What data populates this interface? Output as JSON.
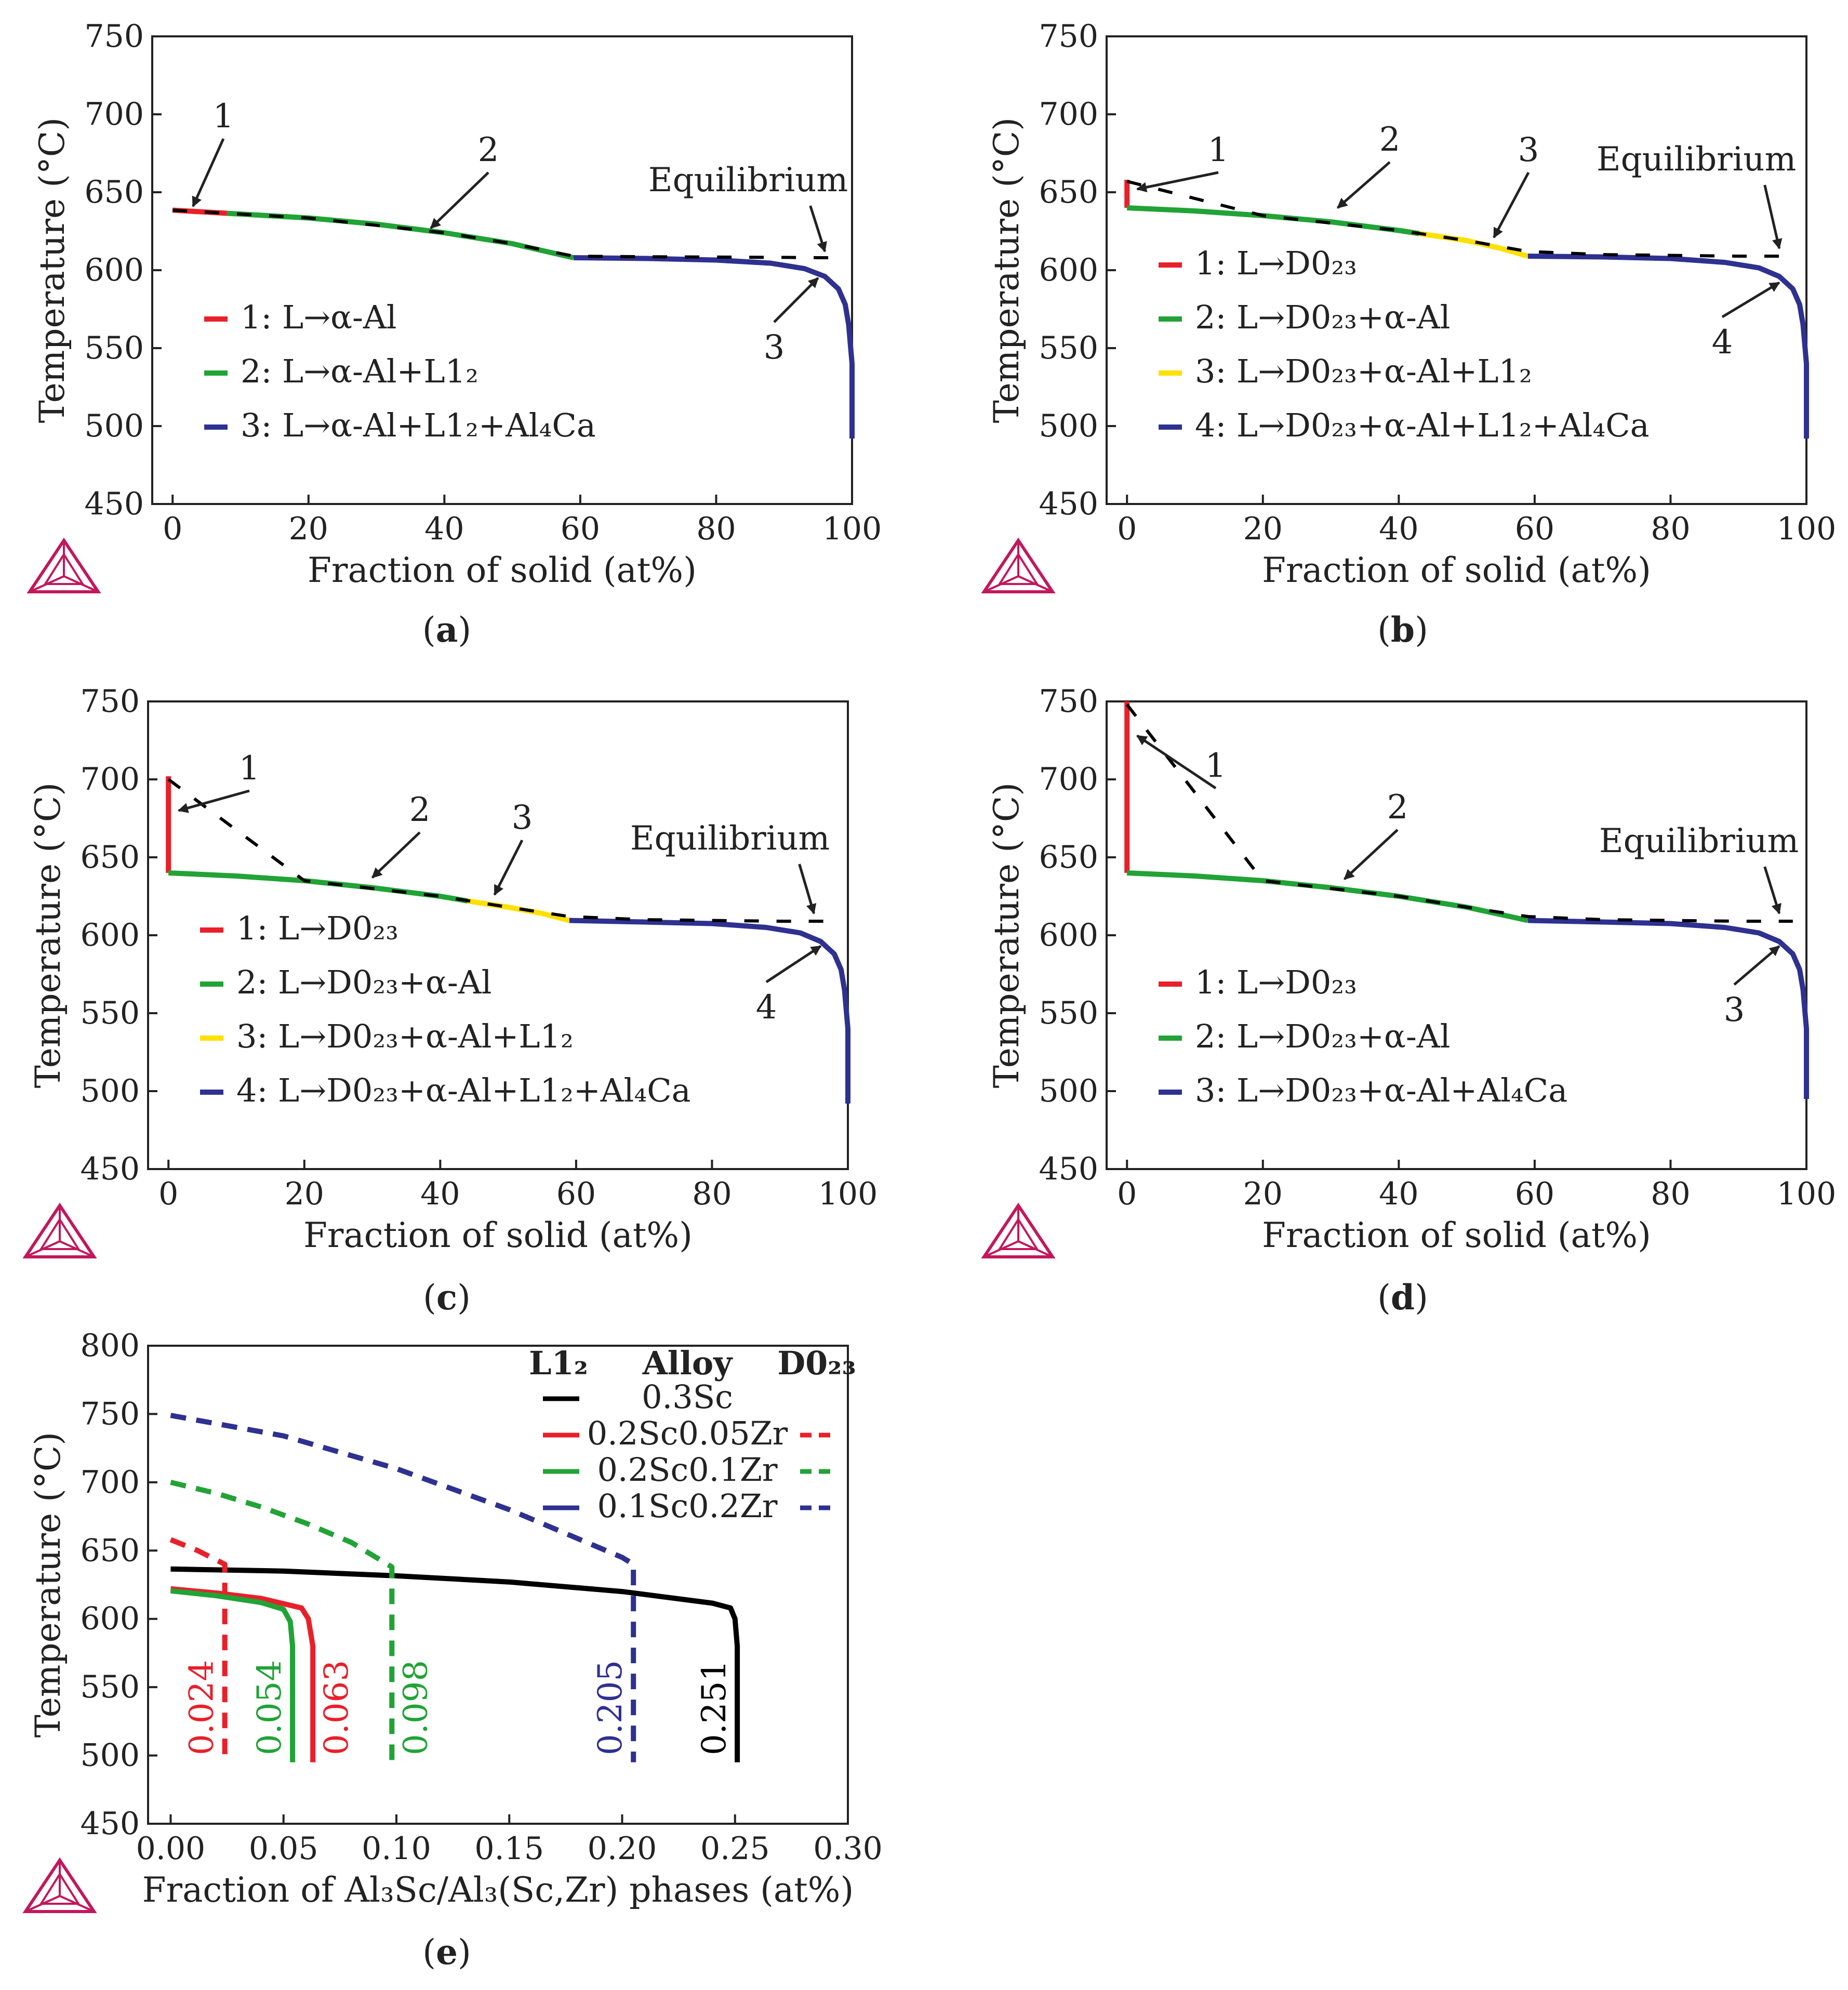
{
  "figure": {
    "panels": [
      {
        "id": "a",
        "caption_letter": "a",
        "legend": [
          {
            "label": "1: L→α-Al",
            "color": "#e8202a"
          },
          {
            "label": "2: L→α-Al+L1₂",
            "color": "#21a336"
          },
          {
            "label": "3: L→α-Al+L1₂+Al₄Ca",
            "color": "#2e3190"
          }
        ],
        "annotations": [
          "1",
          "2",
          "3",
          "Equilibrium"
        ]
      },
      {
        "id": "b",
        "caption_letter": "b",
        "legend": [
          {
            "label": "1: L→D0₂₃",
            "color": "#e8202a"
          },
          {
            "label": "2: L→D0₂₃+α-Al",
            "color": "#21a336"
          },
          {
            "label": "3: L→D0₂₃+α-Al+L1₂",
            "color": "#ffe000"
          },
          {
            "label": "4: L→D0₂₃+α-Al+L1₂+Al₄Ca",
            "color": "#2e3190"
          }
        ],
        "annotations": [
          "1",
          "2",
          "3",
          "4",
          "Equilibrium"
        ]
      },
      {
        "id": "c",
        "caption_letter": "c",
        "legend": [
          {
            "label": "1: L→D0₂₃",
            "color": "#e8202a"
          },
          {
            "label": "2: L→D0₂₃+α-Al",
            "color": "#21a336"
          },
          {
            "label": "3: L→D0₂₃+α-Al+L1₂",
            "color": "#ffe000"
          },
          {
            "label": "4: L→D0₂₃+α-Al+L1₂+Al₄Ca",
            "color": "#2e3190"
          }
        ],
        "annotations": [
          "1",
          "2",
          "3",
          "4",
          "Equilibrium"
        ]
      },
      {
        "id": "d",
        "caption_letter": "d",
        "legend": [
          {
            "label": "1: L→D0₂₃",
            "color": "#e8202a"
          },
          {
            "label": "2: L→D0₂₃+α-Al",
            "color": "#21a336"
          },
          {
            "label": "3: L→D0₂₃+α-Al+Al₄Ca",
            "color": "#2e3190"
          }
        ],
        "annotations": [
          "1",
          "2",
          "3",
          "Equilibrium"
        ]
      },
      {
        "id": "e",
        "caption_letter": "e",
        "legend_headers": [
          "L1₂",
          "Alloy",
          "D0₂₃"
        ],
        "legend": [
          {
            "label": "0.3Sc",
            "color": "#000000",
            "has_dashed": false
          },
          {
            "label": "0.2Sc0.05Zr",
            "color": "#e8202a",
            "has_dashed": true
          },
          {
            "label": "0.2Sc0.1Zr",
            "color": "#21a336",
            "has_dashed": true
          },
          {
            "label": "0.1Sc0.2Zr",
            "color": "#2e3190",
            "has_dashed": true
          }
        ],
        "value_labels": [
          {
            "text": "0.024",
            "color": "#e8202a"
          },
          {
            "text": "0.054",
            "color": "#21a336"
          },
          {
            "text": "0.063",
            "color": "#e8202a"
          },
          {
            "text": "0.098",
            "color": "#21a336"
          },
          {
            "text": "0.205",
            "color": "#2e3190"
          },
          {
            "text": "0.251",
            "color": "#000000"
          }
        ]
      }
    ]
  },
  "chart_data": [
    {
      "panel": "a",
      "type": "line",
      "xlabel": "Fraction of solid (at%)",
      "ylabel": "Temperature (°C)",
      "xlim": [
        -3,
        100
      ],
      "ylim": [
        450,
        750
      ],
      "xticks": [
        0,
        20,
        40,
        60,
        80,
        100
      ],
      "yticks": [
        450,
        500,
        550,
        600,
        650,
        700,
        750
      ],
      "series": [
        {
          "name": "1: L→α-Al",
          "color": "#e8202a",
          "x": [
            0,
            8
          ],
          "y": [
            638.5,
            636.5
          ]
        },
        {
          "name": "2: L→α-Al+L1₂",
          "color": "#21a336",
          "x": [
            8,
            20,
            30,
            40,
            50,
            59
          ],
          "y": [
            636.5,
            633.5,
            629.5,
            624,
            617,
            608
          ]
        },
        {
          "name": "3: L→α-Al+L1₂+Al₄Ca",
          "color": "#2e3190",
          "x": [
            59,
            70,
            80,
            88,
            93,
            96,
            98,
            99,
            99.5,
            100,
            100
          ],
          "y": [
            608,
            607.5,
            606.5,
            604.5,
            601,
            596,
            588,
            578,
            565,
            540,
            492
          ]
        },
        {
          "name": "Equilibrium",
          "dashed": true,
          "color": "#000000",
          "x": [
            0,
            20,
            40,
            50,
            59,
            70,
            80,
            90,
            96,
            98
          ],
          "y": [
            638.5,
            633.5,
            624,
            617,
            609,
            608.6,
            608.4,
            608.2,
            608,
            608
          ]
        }
      ]
    },
    {
      "panel": "b",
      "type": "line",
      "xlabel": "Fraction of solid (at%)",
      "ylabel": "Temperature (°C)",
      "xlim": [
        -3,
        100
      ],
      "ylim": [
        450,
        750
      ],
      "xticks": [
        0,
        20,
        40,
        60,
        80,
        100
      ],
      "yticks": [
        450,
        500,
        550,
        600,
        650,
        700,
        750
      ],
      "series": [
        {
          "name": "1: L→D0₂₃",
          "color": "#e8202a",
          "x": [
            0,
            0
          ],
          "y": [
            658,
            640
          ]
        },
        {
          "name": "2: L→D0₂₃+α-Al",
          "color": "#21a336",
          "x": [
            0,
            10,
            20,
            30,
            40,
            43
          ],
          "y": [
            640,
            638,
            635,
            631,
            625.5,
            623.5
          ]
        },
        {
          "name": "3: L→D0₂₃+α-Al+L1₂",
          "color": "#ffe000",
          "x": [
            43,
            50,
            55,
            59
          ],
          "y": [
            623.5,
            619,
            614,
            609
          ]
        },
        {
          "name": "4: L→D0₂₃+α-Al+L1₂+Al₄Ca",
          "color": "#2e3190",
          "x": [
            59,
            70,
            80,
            88,
            93,
            96,
            98,
            99,
            99.5,
            100,
            100
          ],
          "y": [
            609,
            608.5,
            607.5,
            605,
            601.5,
            596,
            588,
            578,
            565,
            540,
            492
          ]
        },
        {
          "name": "Equilibrium",
          "dashed": true,
          "color": "#000000",
          "x": [
            0,
            20,
            40,
            50,
            59,
            70,
            80,
            90,
            96,
            98
          ],
          "y": [
            657,
            635,
            625.5,
            619,
            612,
            610,
            609.5,
            609,
            609,
            609
          ]
        }
      ]
    },
    {
      "panel": "c",
      "type": "line",
      "xlabel": "Fraction of solid (at%)",
      "ylabel": "Temperature (°C)",
      "xlim": [
        -3,
        100
      ],
      "ylim": [
        450,
        750
      ],
      "xticks": [
        0,
        20,
        40,
        60,
        80,
        100
      ],
      "yticks": [
        450,
        500,
        550,
        600,
        650,
        700,
        750
      ],
      "series": [
        {
          "name": "1: L→D0₂₃",
          "color": "#e8202a",
          "x": [
            0,
            0
          ],
          "y": [
            702,
            640
          ]
        },
        {
          "name": "2: L→D0₂₃+α-Al",
          "color": "#21a336",
          "x": [
            0,
            10,
            20,
            30,
            40,
            44
          ],
          "y": [
            640,
            638,
            635,
            630.5,
            625,
            622
          ]
        },
        {
          "name": "3: L→D0₂₃+α-Al+L1₂",
          "color": "#ffe000",
          "x": [
            44,
            50,
            55,
            59
          ],
          "y": [
            622,
            618,
            614,
            609.5
          ]
        },
        {
          "name": "4: L→D0₂₃+α-Al+L1₂+Al₄Ca",
          "color": "#2e3190",
          "x": [
            59,
            70,
            80,
            88,
            93,
            96,
            98,
            99,
            99.5,
            100,
            100
          ],
          "y": [
            609.5,
            608.5,
            607.5,
            605,
            601.5,
            596,
            588,
            578,
            565,
            540,
            492
          ]
        },
        {
          "name": "Equilibrium",
          "dashed": true,
          "color": "#000000",
          "x": [
            0,
            20,
            40,
            50,
            59,
            70,
            80,
            90,
            96,
            98
          ],
          "y": [
            700,
            635,
            625,
            618,
            612,
            610,
            609.5,
            609,
            609,
            609
          ]
        }
      ]
    },
    {
      "panel": "d",
      "type": "line",
      "xlabel": "Fraction of solid (at%)",
      "ylabel": "Temperature (°C)",
      "xlim": [
        -3,
        100
      ],
      "ylim": [
        450,
        750
      ],
      "xticks": [
        0,
        20,
        40,
        60,
        80,
        100
      ],
      "yticks": [
        450,
        500,
        550,
        600,
        650,
        700,
        750
      ],
      "series": [
        {
          "name": "1: L→D0₂₃",
          "color": "#e8202a",
          "x": [
            0,
            0
          ],
          "y": [
            750,
            640
          ]
        },
        {
          "name": "2: L→D0₂₃+α-Al",
          "color": "#21a336",
          "x": [
            0,
            10,
            20,
            30,
            40,
            50,
            59
          ],
          "y": [
            640,
            638,
            635,
            630.5,
            625,
            618,
            609.5
          ]
        },
        {
          "name": "3: L→D0₂₃+α-Al+Al₄Ca",
          "color": "#2e3190",
          "x": [
            59,
            70,
            80,
            88,
            93,
            96,
            98,
            99,
            99.5,
            100,
            100
          ],
          "y": [
            609.5,
            608.5,
            607.5,
            605,
            601.5,
            596,
            588,
            578,
            565,
            540,
            495
          ]
        },
        {
          "name": "Equilibrium",
          "dashed": true,
          "color": "#000000",
          "x": [
            0,
            20,
            40,
            50,
            59,
            70,
            80,
            90,
            96,
            98
          ],
          "y": [
            748,
            635,
            625,
            618,
            612,
            610,
            609.5,
            609,
            609,
            609
          ]
        }
      ]
    },
    {
      "panel": "e",
      "type": "line",
      "xlabel": "Fraction of Al₃Sc/Al₃(Sc,Zr) phases (at%)",
      "ylabel": "Temperature (°C)",
      "xlim": [
        -0.01,
        0.3
      ],
      "ylim": [
        450,
        800
      ],
      "xticks": [
        "0.00",
        "0.05",
        "0.10",
        "0.15",
        "0.20",
        "0.25",
        "0.30"
      ],
      "yticks": [
        450,
        500,
        550,
        600,
        650,
        700,
        750,
        800
      ],
      "series": [
        {
          "name": "0.3Sc",
          "phase": "L1₂",
          "color": "#000000",
          "dashed": false,
          "x": [
            0,
            0.05,
            0.1,
            0.15,
            0.2,
            0.24,
            0.248,
            0.25,
            0.251,
            0.251
          ],
          "y": [
            636.5,
            635,
            631.5,
            627,
            620,
            611.5,
            608,
            600,
            580,
            495
          ]
        },
        {
          "name": "0.2Sc0.05Zr",
          "phase": "L1₂",
          "color": "#e8202a",
          "dashed": false,
          "x": [
            0,
            0.02,
            0.04,
            0.058,
            0.061,
            0.063,
            0.063
          ],
          "y": [
            622,
            619,
            615,
            608,
            600,
            580,
            495
          ]
        },
        {
          "name": "0.2Sc0.05Zr",
          "phase": "D0₂₃",
          "color": "#e8202a",
          "dashed": true,
          "x": [
            0,
            0.012,
            0.024,
            0.024
          ],
          "y": [
            658,
            650,
            640,
            495
          ]
        },
        {
          "name": "0.2Sc0.1Zr",
          "phase": "L1₂",
          "color": "#21a336",
          "dashed": false,
          "x": [
            0,
            0.02,
            0.04,
            0.05,
            0.053,
            0.054,
            0.054
          ],
          "y": [
            620.5,
            617,
            612,
            607,
            598,
            580,
            495
          ]
        },
        {
          "name": "0.2Sc0.1Zr",
          "phase": "D0₂₃",
          "color": "#21a336",
          "dashed": true,
          "x": [
            0,
            0.02,
            0.04,
            0.06,
            0.08,
            0.098,
            0.098
          ],
          "y": [
            700,
            692,
            682,
            670,
            656,
            638,
            495
          ]
        },
        {
          "name": "0.1Sc0.2Zr",
          "phase": "D0₂₃",
          "color": "#2e3190",
          "dashed": true,
          "x": [
            0,
            0.05,
            0.1,
            0.15,
            0.2,
            0.205,
            0.205
          ],
          "y": [
            749,
            734,
            710,
            680,
            645,
            640,
            495
          ]
        }
      ]
    }
  ]
}
